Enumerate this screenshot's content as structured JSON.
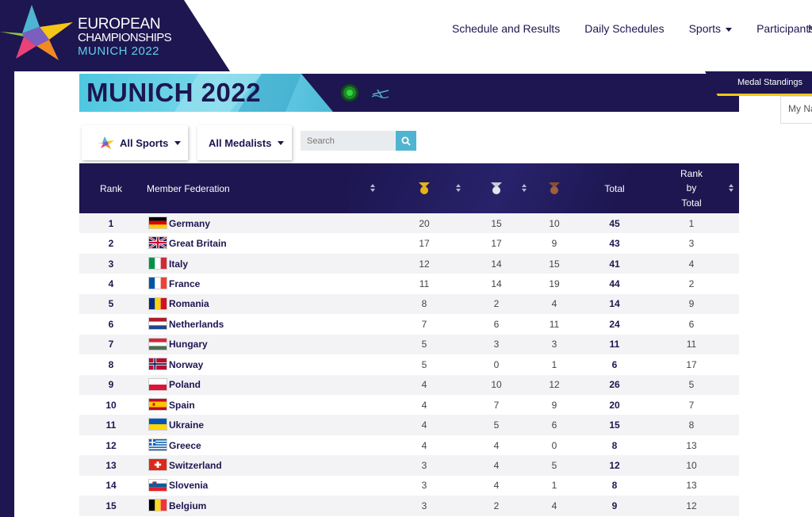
{
  "logo": {
    "line1": "EUROPEAN",
    "line2": "CHAMPIONSHIPS",
    "line3": "MUNICH 2022"
  },
  "nav": {
    "items": [
      {
        "label": "Schedule and Results",
        "dropdown": false
      },
      {
        "label": "Daily Schedules",
        "dropdown": false
      },
      {
        "label": "Sports",
        "dropdown": true
      },
      {
        "label": "Participants",
        "dropdown": false
      }
    ],
    "cut_off": "N"
  },
  "banner": {
    "title": "MUNICH 2022"
  },
  "tabs": {
    "medal_standings": "Medal Standings",
    "my": "My Na"
  },
  "filters": {
    "sports": "All Sports",
    "medalists": "All Medalists",
    "search_placeholder": "Search"
  },
  "table": {
    "headers": {
      "rank": "Rank",
      "federation": "Member Federation",
      "total": "Total",
      "rank_by_total_1": "Rank",
      "rank_by_total_2": "by",
      "rank_by_total_3": "Total"
    },
    "rows": [
      {
        "rank": "1",
        "name": "Germany",
        "flag": "de",
        "gold": "20",
        "silver": "15",
        "bronze": "10",
        "total": "45",
        "rank_total": "1"
      },
      {
        "rank": "2",
        "name": "Great Britain",
        "flag": "gb",
        "gold": "17",
        "silver": "17",
        "bronze": "9",
        "total": "43",
        "rank_total": "3"
      },
      {
        "rank": "3",
        "name": "Italy",
        "flag": "it",
        "gold": "12",
        "silver": "14",
        "bronze": "15",
        "total": "41",
        "rank_total": "4"
      },
      {
        "rank": "4",
        "name": "France",
        "flag": "fr",
        "gold": "11",
        "silver": "14",
        "bronze": "19",
        "total": "44",
        "rank_total": "2"
      },
      {
        "rank": "5",
        "name": "Romania",
        "flag": "ro",
        "gold": "8",
        "silver": "2",
        "bronze": "4",
        "total": "14",
        "rank_total": "9"
      },
      {
        "rank": "6",
        "name": "Netherlands",
        "flag": "nl",
        "gold": "7",
        "silver": "6",
        "bronze": "11",
        "total": "24",
        "rank_total": "6"
      },
      {
        "rank": "7",
        "name": "Hungary",
        "flag": "hu",
        "gold": "5",
        "silver": "3",
        "bronze": "3",
        "total": "11",
        "rank_total": "11"
      },
      {
        "rank": "8",
        "name": "Norway",
        "flag": "no",
        "gold": "5",
        "silver": "0",
        "bronze": "1",
        "total": "6",
        "rank_total": "17"
      },
      {
        "rank": "9",
        "name": "Poland",
        "flag": "pl",
        "gold": "4",
        "silver": "10",
        "bronze": "12",
        "total": "26",
        "rank_total": "5"
      },
      {
        "rank": "10",
        "name": "Spain",
        "flag": "es",
        "gold": "4",
        "silver": "7",
        "bronze": "9",
        "total": "20",
        "rank_total": "7"
      },
      {
        "rank": "11",
        "name": "Ukraine",
        "flag": "ua",
        "gold": "4",
        "silver": "5",
        "bronze": "6",
        "total": "15",
        "rank_total": "8"
      },
      {
        "rank": "12",
        "name": "Greece",
        "flag": "gr",
        "gold": "4",
        "silver": "4",
        "bronze": "0",
        "total": "8",
        "rank_total": "13"
      },
      {
        "rank": "13",
        "name": "Switzerland",
        "flag": "ch",
        "gold": "3",
        "silver": "4",
        "bronze": "5",
        "total": "12",
        "rank_total": "10"
      },
      {
        "rank": "14",
        "name": "Slovenia",
        "flag": "si",
        "gold": "3",
        "silver": "4",
        "bronze": "1",
        "total": "8",
        "rank_total": "13"
      },
      {
        "rank": "15",
        "name": "Belgium",
        "flag": "be",
        "gold": "3",
        "silver": "2",
        "bronze": "4",
        "total": "9",
        "rank_total": "12"
      }
    ]
  },
  "colors": {
    "navy": "#1d1650",
    "cyan": "#4fb4d1",
    "gold": "#e7b416",
    "silver": "#c9c9d4",
    "bronze": "#a0603a",
    "accent_yellow": "#f5c518"
  }
}
